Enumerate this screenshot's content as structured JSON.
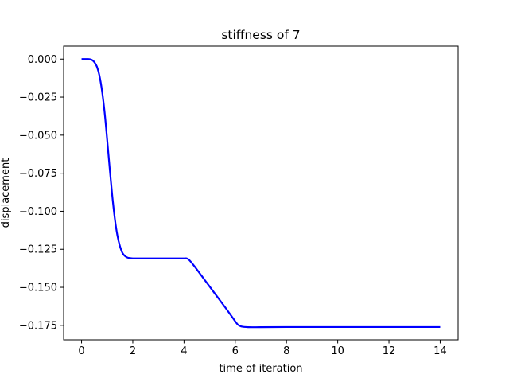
{
  "chart_data": {
    "type": "line",
    "title": "stiffness of 7",
    "xlabel": "time of iteration",
    "ylabel": "displacement",
    "xlim": [
      -0.7,
      14.7
    ],
    "ylim": [
      -0.1845,
      0.0085
    ],
    "x_ticks": [
      0,
      2,
      4,
      6,
      8,
      10,
      12,
      14
    ],
    "x_tick_labels": [
      "0",
      "2",
      "4",
      "6",
      "8",
      "10",
      "12",
      "14"
    ],
    "y_ticks": [
      0.0,
      -0.025,
      -0.05,
      -0.075,
      -0.1,
      -0.125,
      -0.15,
      -0.175
    ],
    "y_tick_labels": [
      "0.000",
      "−0.025",
      "−0.050",
      "−0.075",
      "−0.100",
      "−0.125",
      "−0.150",
      "−0.175"
    ],
    "grid": false,
    "series": [
      {
        "color": "#0000ff",
        "x": [
          0,
          0.25,
          0.4,
          0.5,
          0.6,
          0.7,
          0.8,
          0.9,
          1.0,
          1.1,
          1.2,
          1.3,
          1.4,
          1.5,
          1.6,
          1.7,
          1.8,
          1.9,
          2.0,
          2.2,
          2.5,
          3.0,
          3.5,
          4.0,
          4.1,
          4.2,
          4.4,
          4.8,
          5.2,
          5.6,
          5.9,
          6.1,
          6.25,
          6.5,
          7.0,
          8.0,
          10.0,
          12.0,
          14.0
        ],
        "values": [
          0.0,
          0.0,
          -0.0005,
          -0.002,
          -0.005,
          -0.011,
          -0.021,
          -0.035,
          -0.053,
          -0.072,
          -0.09,
          -0.105,
          -0.116,
          -0.123,
          -0.1275,
          -0.1295,
          -0.1305,
          -0.1308,
          -0.131,
          -0.131,
          -0.131,
          -0.131,
          -0.131,
          -0.131,
          -0.131,
          -0.132,
          -0.136,
          -0.145,
          -0.154,
          -0.163,
          -0.17,
          -0.1745,
          -0.1758,
          -0.1762,
          -0.1762,
          -0.1761,
          -0.1761,
          -0.1761,
          -0.1761
        ]
      }
    ]
  }
}
